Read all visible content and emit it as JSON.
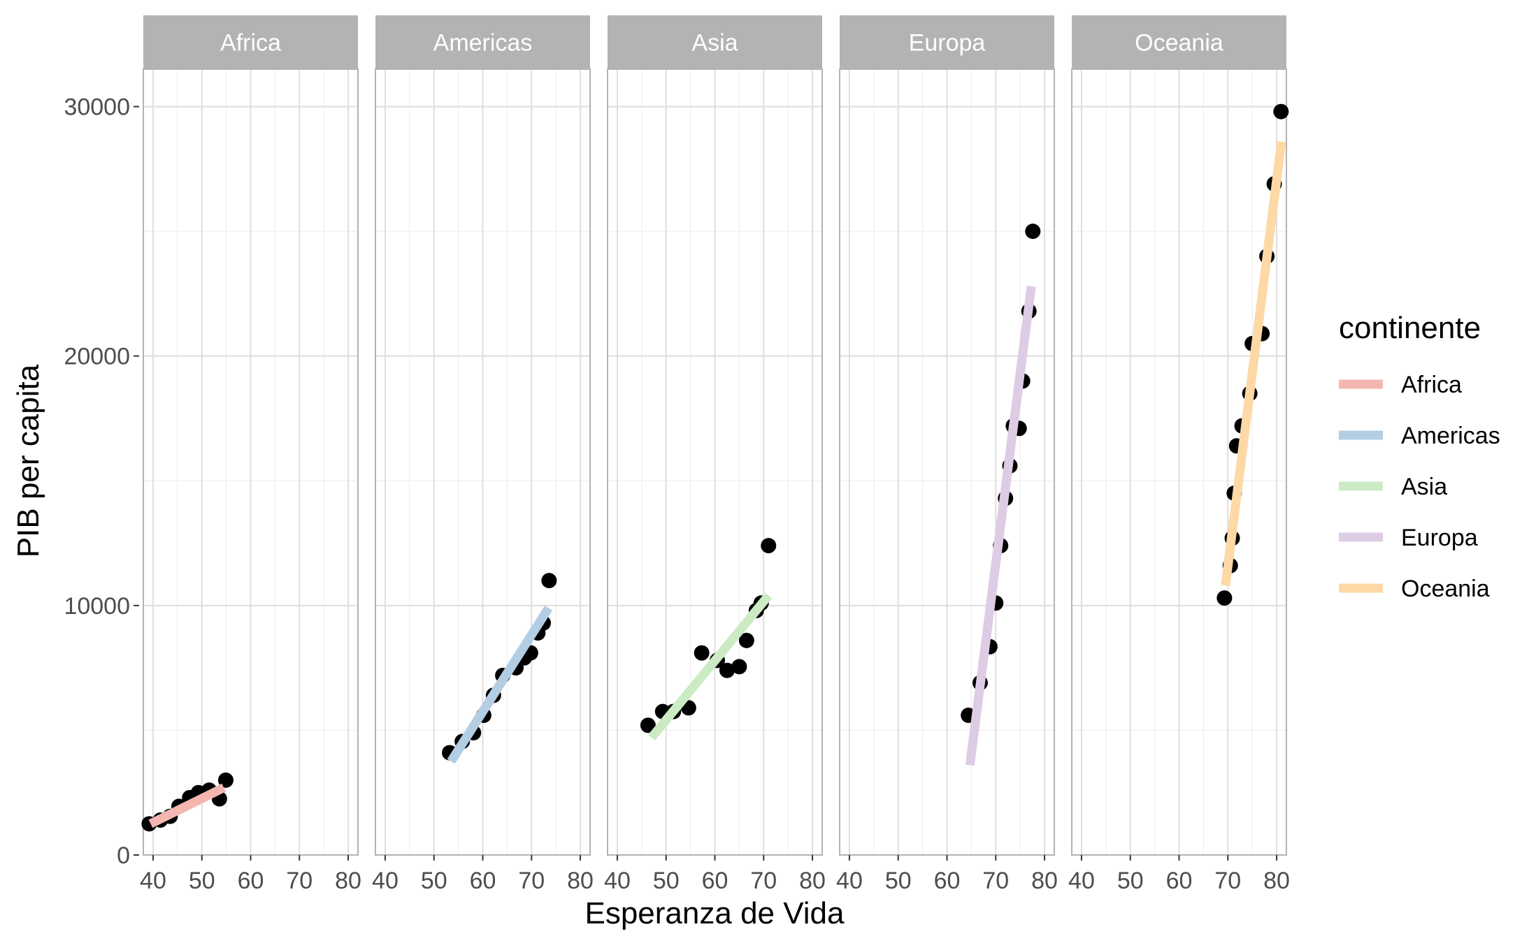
{
  "chart_data": {
    "type": "scatter",
    "facet_by": "continente",
    "x_label": "Esperanza de Vida",
    "y_label": "PIB per capita",
    "xlim": [
      38,
      82
    ],
    "ylim": [
      0,
      31500
    ],
    "x_ticks": [
      "40",
      "50",
      "60",
      "70",
      "80"
    ],
    "y_ticks": [
      "0",
      "10000",
      "20000",
      "30000"
    ],
    "legend": {
      "title": "continente",
      "position": "right"
    },
    "grid": true,
    "point_color": "#000000",
    "panels": [
      {
        "name": "Africa",
        "color": "#f4b6b0",
        "points": [
          [
            39.2,
            1250
          ],
          [
            41.5,
            1400
          ],
          [
            43.5,
            1550
          ],
          [
            45.3,
            1950
          ],
          [
            47.5,
            2300
          ],
          [
            49.3,
            2500
          ],
          [
            51.5,
            2600
          ],
          [
            53.6,
            2250
          ],
          [
            54.9,
            3000
          ]
        ],
        "fit": [
          [
            39.5,
            1250
          ],
          [
            54.5,
            2700
          ]
        ]
      },
      {
        "name": "Americas",
        "color": "#b3cde3",
        "points": [
          [
            53.2,
            4100
          ],
          [
            55.8,
            4550
          ],
          [
            58.1,
            4900
          ],
          [
            60.2,
            5600
          ],
          [
            62.2,
            6400
          ],
          [
            64.1,
            7200
          ],
          [
            66.8,
            7500
          ],
          [
            68.5,
            7900
          ],
          [
            69.8,
            8100
          ],
          [
            71.3,
            8900
          ],
          [
            72.4,
            9300
          ],
          [
            73.6,
            11000
          ]
        ],
        "fit": [
          [
            53.5,
            3750
          ],
          [
            73.5,
            9900
          ]
        ]
      },
      {
        "name": "Asia",
        "color": "#ccebc5",
        "points": [
          [
            46.3,
            5200
          ],
          [
            49.3,
            5750
          ],
          [
            51.5,
            5750
          ],
          [
            54.6,
            5900
          ],
          [
            57.3,
            8100
          ],
          [
            60.5,
            7800
          ],
          [
            62.5,
            7400
          ],
          [
            65.0,
            7550
          ],
          [
            66.5,
            8600
          ],
          [
            68.5,
            9800
          ],
          [
            69.5,
            10100
          ],
          [
            71.0,
            12400
          ]
        ],
        "fit": [
          [
            47.0,
            4700
          ],
          [
            71.0,
            10400
          ]
        ]
      },
      {
        "name": "Europa",
        "color": "#decbe4",
        "points": [
          [
            64.4,
            5600
          ],
          [
            66.8,
            6900
          ],
          [
            68.8,
            8350
          ],
          [
            70.0,
            10100
          ],
          [
            71.0,
            12400
          ],
          [
            72.0,
            14300
          ],
          [
            72.9,
            15600
          ],
          [
            73.6,
            17200
          ],
          [
            74.8,
            17100
          ],
          [
            75.5,
            19000
          ],
          [
            76.8,
            21800
          ],
          [
            77.6,
            25000
          ]
        ],
        "fit": [
          [
            64.7,
            3600
          ],
          [
            77.3,
            22800
          ]
        ]
      },
      {
        "name": "Oceania",
        "color": "#fed9a6",
        "points": [
          [
            69.3,
            10300
          ],
          [
            70.5,
            11600
          ],
          [
            70.9,
            12700
          ],
          [
            71.3,
            14500
          ],
          [
            71.8,
            16400
          ],
          [
            72.9,
            17200
          ],
          [
            74.5,
            18500
          ],
          [
            75.0,
            20500
          ],
          [
            77.0,
            20900
          ],
          [
            78.0,
            24000
          ],
          [
            79.5,
            26900
          ],
          [
            80.9,
            29800
          ]
        ],
        "fit": [
          [
            69.5,
            10800
          ],
          [
            81.0,
            28600
          ]
        ]
      }
    ]
  }
}
